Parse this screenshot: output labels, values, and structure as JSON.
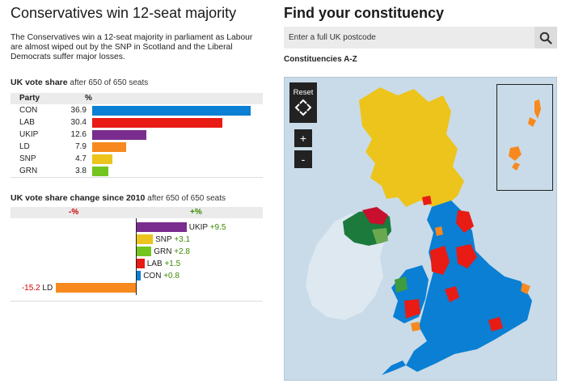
{
  "left": {
    "headline": "Conservatives win 12-seat majority",
    "summary": "The Conservatives win a 12-seat majority in parliament as Labour are almost wiped out by the SNP in Scotland and the Liberal Democrats suffer major losses.",
    "vote_share": {
      "title": "UK vote share",
      "subtitle": "after 650 of 650 seats",
      "col_party": "Party",
      "col_pct": "%",
      "rows": [
        {
          "party": "CON",
          "value": "36.9",
          "pct": 36.9,
          "color": "#0a7fd3"
        },
        {
          "party": "LAB",
          "value": "30.4",
          "pct": 30.4,
          "color": "#e81b15"
        },
        {
          "party": "UKIP",
          "value": "12.6",
          "pct": 12.6,
          "color": "#7a2d8e"
        },
        {
          "party": "LD",
          "value": "7.9",
          "pct": 7.9,
          "color": "#f7891e"
        },
        {
          "party": "SNP",
          "value": "4.7",
          "pct": 4.7,
          "color": "#ecc41c"
        },
        {
          "party": "GRN",
          "value": "3.8",
          "pct": 3.8,
          "color": "#74c41f"
        }
      ]
    },
    "vote_change": {
      "title": "UK vote share change since 2010",
      "subtitle": "after 650 of 650 seats",
      "neg_label": "-%",
      "pos_label": "+%",
      "rows": [
        {
          "party": "UKIP",
          "value": "+9.5",
          "change": 9.5,
          "color": "#7a2d8e"
        },
        {
          "party": "SNP",
          "value": "+3.1",
          "change": 3.1,
          "color": "#ecc41c"
        },
        {
          "party": "GRN",
          "value": "+2.8",
          "change": 2.8,
          "color": "#74c41f"
        },
        {
          "party": "LAB",
          "value": "+1.5",
          "change": 1.5,
          "color": "#e81b15"
        },
        {
          "party": "CON",
          "value": "+0.8",
          "change": 0.8,
          "color": "#0a7fd3"
        },
        {
          "party": "LD",
          "value": "-15.2",
          "change": -15.2,
          "color": "#f7891e"
        }
      ]
    }
  },
  "right": {
    "title": "Find your constituency",
    "search_placeholder": "Enter a full UK postcode",
    "search_icon": "search-icon",
    "az_link": "Constituencies A-Z",
    "map": {
      "reset_label": "Reset",
      "zoom_in": "+",
      "zoom_out": "-",
      "sea_color": "#c9dbe8",
      "ireland_color": "#dde8f0"
    }
  }
}
